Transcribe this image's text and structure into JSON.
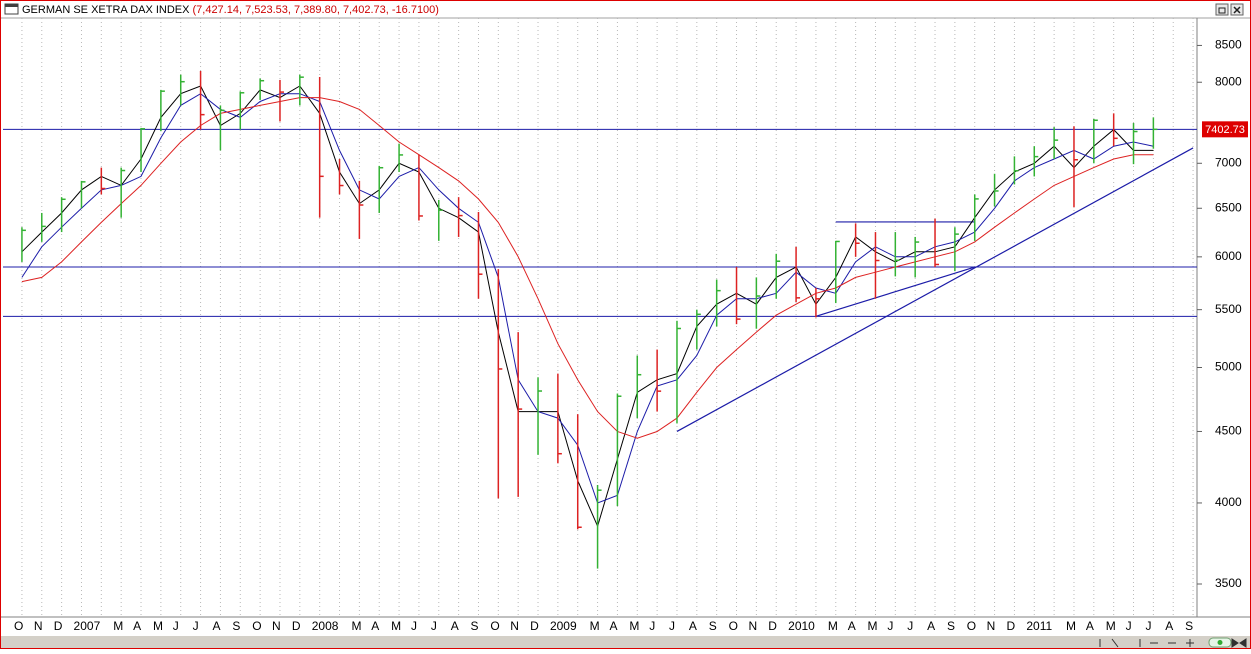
{
  "chart_data": {
    "type": "ohlc",
    "title": "GERMAN SE XETRA DAX INDEX",
    "quote": "(7,427.14, 7,523.53, 7,389.80, 7,402.73, -16.7100)",
    "log_scale": true,
    "ylim": [
      3381,
      8893
    ],
    "yticks": [
      3500,
      4000,
      4500,
      5000,
      5500,
      6000,
      6500,
      7000,
      8000,
      8500
    ],
    "categories": [
      "O",
      "N",
      "D",
      "2007",
      null,
      "M",
      "A",
      "M",
      "J",
      "J",
      "A",
      "S",
      "O",
      "N",
      "D",
      "2008",
      null,
      "M",
      "A",
      "M",
      "J",
      "J",
      "A",
      "S",
      "O",
      "N",
      "D",
      "2009",
      null,
      "M",
      "A",
      "M",
      "J",
      "J",
      "A",
      "S",
      "O",
      "N",
      "D",
      "2010",
      null,
      "M",
      "A",
      "M",
      "J",
      "J",
      "A",
      "S",
      "O",
      "N",
      "D",
      "2011",
      null,
      "M",
      "A",
      "M",
      "J",
      "J",
      "A",
      "S"
    ],
    "up_color": "#33b233",
    "down_color": "#dd2222",
    "high": [
      6300,
      6450,
      6620,
      6800,
      6950,
      6950,
      7420,
      7900,
      8100,
      8150,
      7700,
      7880,
      8050,
      8030,
      8100,
      8070,
      7050,
      6800,
      6970,
      7230,
      7100,
      6590,
      6620,
      6460,
      5880,
      5300,
      4920,
      4950,
      4630,
      4120,
      4790,
      5100,
      5150,
      5400,
      5500,
      5780,
      5900,
      5800,
      6030,
      6100,
      5700,
      6160,
      6340,
      6250,
      6250,
      6200,
      6390,
      6300,
      6650,
      6880,
      7080,
      7200,
      7430,
      7440,
      7530,
      7600,
      7480,
      7550,
      null,
      null
    ],
    "low": [
      5950,
      6150,
      6250,
      6500,
      6650,
      6400,
      6900,
      7380,
      7700,
      7400,
      7150,
      7400,
      7770,
      7500,
      7700,
      6400,
      6650,
      6180,
      6450,
      6900,
      6370,
      6160,
      6200,
      5600,
      4030,
      4040,
      4330,
      4270,
      3830,
      3590,
      3980,
      4600,
      4650,
      4560,
      5150,
      5350,
      5370,
      5330,
      5600,
      5570,
      5430,
      5560,
      6000,
      5600,
      5810,
      5800,
      5900,
      5860,
      6160,
      6520,
      6760,
      6850,
      7050,
      6510,
      7000,
      7200,
      6990,
      7170,
      null,
      null
    ],
    "close": [
      6268,
      6309,
      6597,
      6789,
      6715,
      6917,
      7409,
      7883,
      8007,
      7584,
      7638,
      7862,
      8020,
      7871,
      8067,
      6851,
      6748,
      6535,
      6949,
      7097,
      6418,
      6480,
      6422,
      5831,
      4988,
      4669,
      4810,
      4338,
      3843,
      4085,
      4769,
      4941,
      4809,
      5332,
      5458,
      5675,
      5415,
      5625,
      5957,
      5608,
      5599,
      6154,
      6136,
      5964,
      5966,
      6148,
      5925,
      6229,
      6601,
      6688,
      6914,
      7077,
      7272,
      7041,
      7514,
      7294,
      7376,
      7402.73,
      null,
      null
    ],
    "series": [
      {
        "color": "#000000",
        "values": [
          6050,
          6250,
          6450,
          6700,
          6850,
          6750,
          7050,
          7550,
          7850,
          7950,
          7450,
          7600,
          7900,
          7800,
          7950,
          7600,
          6900,
          6550,
          6700,
          7000,
          6900,
          6500,
          6400,
          6250,
          5300,
          4650,
          4650,
          4650,
          4150,
          3850,
          4300,
          4800,
          4900,
          4950,
          5350,
          5550,
          5650,
          5550,
          5800,
          5900,
          5550,
          5800,
          6200,
          6050,
          5950,
          6050,
          6050,
          6100,
          6400,
          6700,
          6900,
          7000,
          7200,
          6950,
          7200,
          7400,
          7150,
          7150,
          null,
          null
        ]
      },
      {
        "color": "#1c1ca8",
        "values": [
          5800,
          6100,
          6300,
          6500,
          6700,
          6750,
          6850,
          7300,
          7700,
          7850,
          7650,
          7550,
          7750,
          7850,
          7850,
          7750,
          7150,
          6700,
          6600,
          6850,
          6950,
          6700,
          6500,
          6350,
          5800,
          4900,
          4650,
          4600,
          4400,
          4000,
          4050,
          4500,
          4850,
          4900,
          5100,
          5450,
          5600,
          5600,
          5650,
          5850,
          5700,
          5650,
          5950,
          6100,
          6000,
          6000,
          6100,
          6150,
          6250,
          6500,
          6800,
          6950,
          7050,
          7150,
          7050,
          7200,
          7250,
          7200,
          null,
          null
        ]
      },
      {
        "color": "#dd2222",
        "values": [
          5760,
          5800,
          5950,
          6150,
          6350,
          6550,
          6750,
          7000,
          7250,
          7450,
          7600,
          7650,
          7700,
          7750,
          7800,
          7800,
          7750,
          7650,
          7450,
          7250,
          7100,
          6950,
          6800,
          6600,
          6350,
          6000,
          5600,
          5200,
          4900,
          4650,
          4500,
          4450,
          4500,
          4600,
          4800,
          5000,
          5150,
          5300,
          5450,
          5550,
          5650,
          5700,
          5800,
          5850,
          5900,
          5950,
          6000,
          6050,
          6150,
          6300,
          6450,
          6600,
          6750,
          6850,
          6950,
          7050,
          7100,
          7100,
          null,
          null
        ]
      }
    ],
    "levels": [
      7402.73,
      5900,
      5440
    ],
    "level_color": "#1c1ca8",
    "trendlines": [
      {
        "from": [
          33,
          4500
        ],
        "to": [
          59,
          7179
        ]
      },
      {
        "from": [
          40,
          5440
        ],
        "to": [
          48,
          5900
        ]
      },
      {
        "from": [
          41,
          6355
        ],
        "to": [
          48,
          6355
        ]
      }
    ]
  }
}
